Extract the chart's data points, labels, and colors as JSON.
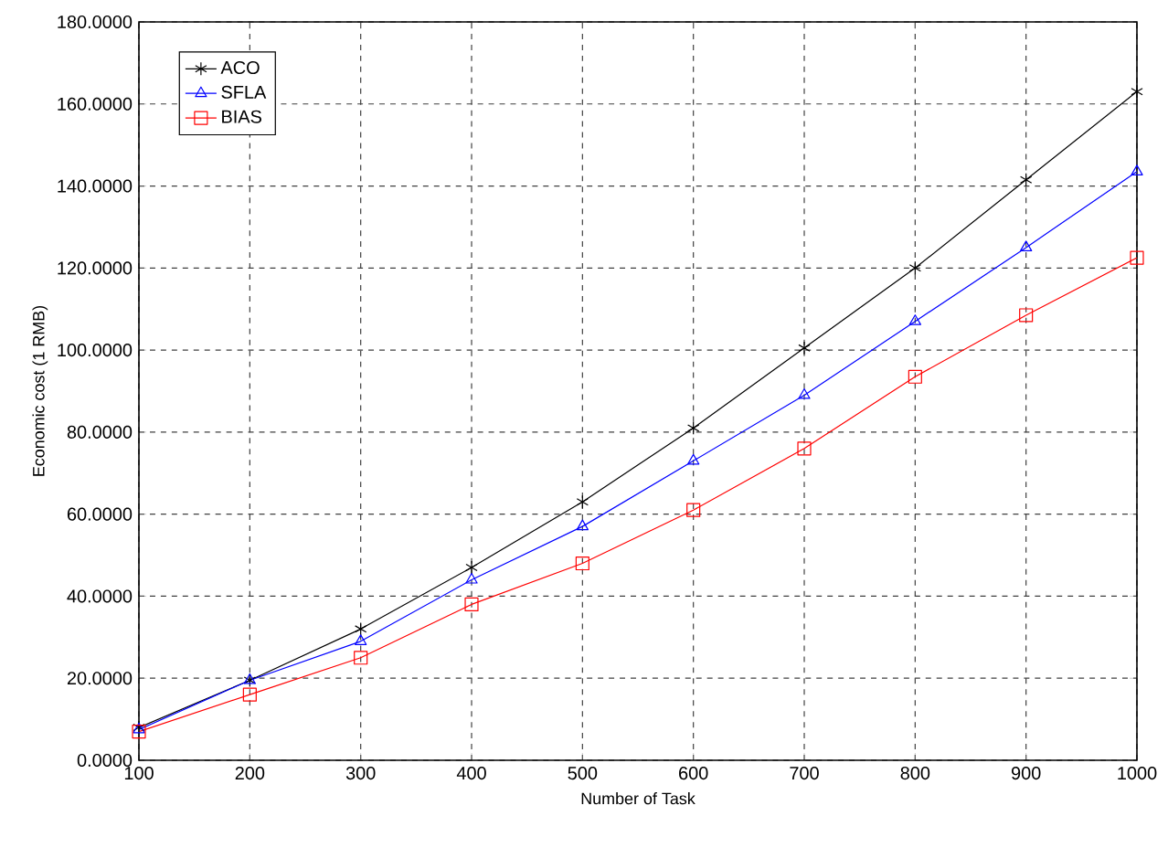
{
  "chart_data": {
    "type": "line",
    "xlabel": "Number of Task",
    "ylabel": "Economic cost (1 RMB)",
    "x": [
      100,
      200,
      300,
      400,
      500,
      600,
      700,
      800,
      900,
      1000
    ],
    "series": [
      {
        "name": "ACO",
        "color": "#000000",
        "marker": "cross",
        "values": [
          8,
          19.5,
          32,
          47,
          63,
          81,
          100.5,
          120,
          141.5,
          163
        ]
      },
      {
        "name": "SFLA",
        "color": "#0000ff",
        "marker": "triangle",
        "values": [
          7.5,
          19.5,
          29,
          44,
          57,
          73,
          89,
          107,
          125,
          143.5
        ]
      },
      {
        "name": "BIAS",
        "color": "#ff0000",
        "marker": "square",
        "values": [
          7,
          16,
          25,
          38,
          48,
          61,
          76,
          93.5,
          108.5,
          122.5
        ]
      }
    ],
    "xlim": [
      100,
      1000
    ],
    "xticks": [
      100,
      200,
      300,
      400,
      500,
      600,
      700,
      800,
      900,
      1000
    ],
    "ylim": [
      0,
      180
    ],
    "yticks": [
      {
        "value": 0,
        "label": "0.0000"
      },
      {
        "value": 20,
        "label": "20.0000"
      },
      {
        "value": 40,
        "label": "40.0000"
      },
      {
        "value": 60,
        "label": "60.0000"
      },
      {
        "value": 80,
        "label": "80.0000"
      },
      {
        "value": 100,
        "label": "100.0000"
      },
      {
        "value": 120,
        "label": "120.0000"
      },
      {
        "value": 140,
        "label": "140.0000"
      },
      {
        "value": 160,
        "label": "160.0000"
      },
      {
        "value": 180,
        "label": "180.0000"
      }
    ],
    "grid": true,
    "legend": "top left",
    "line_style": "solid"
  }
}
